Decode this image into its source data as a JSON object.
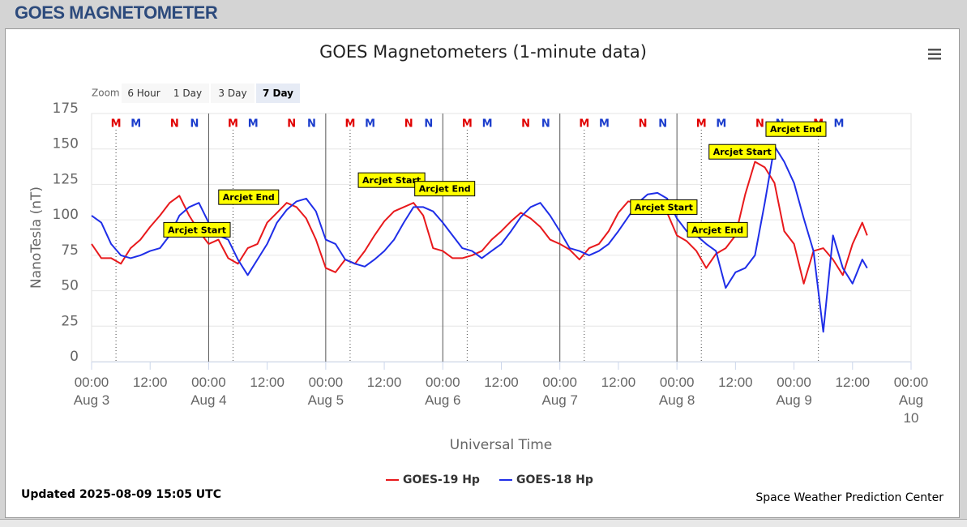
{
  "header": {
    "title": "GOES MAGNETOMETER"
  },
  "zoom": {
    "label": "Zoom",
    "buttons": [
      "6 Hour",
      "1 Day",
      "3 Day",
      "7 Day"
    ],
    "selected": 3
  },
  "chart_data": {
    "type": "line",
    "title": "GOES Magnetometers (1-minute data)",
    "xlabel": "Universal Time",
    "ylabel": "NanoTesla (nT)",
    "x": [
      0,
      2,
      4,
      6,
      8,
      10,
      12,
      14,
      16,
      18,
      20,
      22,
      24,
      26,
      28,
      30,
      32,
      34,
      36,
      38,
      40,
      42,
      44,
      46,
      48,
      50,
      52,
      54,
      56,
      58,
      60,
      62,
      64,
      66,
      68,
      70,
      72,
      74,
      76,
      78,
      80,
      82,
      84,
      86,
      88,
      90,
      92,
      94,
      96,
      98,
      100,
      102,
      104,
      106,
      108,
      110,
      112,
      114,
      116,
      118,
      120,
      122,
      124,
      126,
      128,
      130,
      132,
      134,
      136,
      138,
      140,
      142,
      144,
      146,
      148,
      150,
      152,
      154,
      156,
      158,
      159
    ],
    "series": [
      {
        "name": "GOES-19 Hp",
        "color": "#e8191c",
        "values": [
          83,
          73,
          73,
          69,
          80,
          86,
          95,
          103,
          112,
          117,
          103,
          92,
          83,
          86,
          73,
          69,
          80,
          83,
          98,
          105,
          112,
          109,
          101,
          86,
          66,
          63,
          72,
          69,
          78,
          89,
          99,
          106,
          109,
          112,
          103,
          80,
          78,
          73,
          73,
          75,
          78,
          86,
          92,
          99,
          105,
          101,
          95,
          86,
          83,
          79,
          72,
          80,
          83,
          92,
          105,
          113,
          112,
          109,
          105,
          105,
          89,
          85,
          78,
          66,
          76,
          80,
          89,
          118,
          141,
          137,
          126,
          92,
          83,
          55,
          78,
          80,
          72,
          61,
          83,
          98,
          89
        ]
      },
      {
        "name": "GOES-18 Hp",
        "color": "#1f2ee8",
        "values": [
          103,
          98,
          83,
          75,
          73,
          75,
          78,
          80,
          89,
          103,
          109,
          112,
          98,
          89,
          86,
          72,
          61,
          72,
          83,
          98,
          107,
          113,
          115,
          106,
          86,
          83,
          72,
          69,
          67,
          72,
          78,
          86,
          98,
          109,
          109,
          106,
          98,
          89,
          80,
          78,
          73,
          78,
          83,
          92,
          102,
          109,
          112,
          103,
          92,
          80,
          78,
          75,
          78,
          83,
          92,
          102,
          112,
          118,
          119,
          115,
          101,
          92,
          89,
          83,
          78,
          52,
          63,
          66,
          75,
          112,
          152,
          141,
          126,
          101,
          78,
          21,
          89,
          66,
          55,
          72,
          66
        ]
      }
    ],
    "xlim": [
      0,
      168
    ],
    "ylim": [
      0,
      175
    ],
    "yticks": [
      0,
      25,
      50,
      75,
      100,
      125,
      150,
      175
    ],
    "grid": true,
    "xticks": [
      {
        "value": 0,
        "label": "00:00 Aug 3"
      },
      {
        "value": 12,
        "label": "12:00"
      },
      {
        "value": 24,
        "label": "00:00 Aug 4"
      },
      {
        "value": 36,
        "label": "12:00"
      },
      {
        "value": 48,
        "label": "00:00 Aug 5"
      },
      {
        "value": 60,
        "label": "12:00"
      },
      {
        "value": 72,
        "label": "00:00 Aug 6"
      },
      {
        "value": 84,
        "label": "12:00"
      },
      {
        "value": 96,
        "label": "00:00 Aug 7"
      },
      {
        "value": 108,
        "label": "12:00"
      },
      {
        "value": 120,
        "label": "00:00 Aug 8"
      },
      {
        "value": 132,
        "label": "12:00"
      },
      {
        "value": 144,
        "label": "00:00 Aug 9"
      },
      {
        "value": 156,
        "label": "12:00"
      },
      {
        "value": 168,
        "label": "00:00 Aug 10"
      }
    ],
    "day_lines": [
      24,
      48,
      72,
      96,
      120
    ],
    "markers": [
      {
        "label": "M",
        "color": "#e00000",
        "x": 5
      },
      {
        "label": "M",
        "color": "#1a3ccc",
        "x": 9.1
      },
      {
        "label": "N",
        "color": "#e00000",
        "x": 17
      },
      {
        "label": "N",
        "color": "#1a3ccc",
        "x": 21.1
      },
      {
        "label": "M",
        "color": "#e00000",
        "x": 29
      },
      {
        "label": "M",
        "color": "#1a3ccc",
        "x": 33.1
      },
      {
        "label": "N",
        "color": "#e00000",
        "x": 41
      },
      {
        "label": "N",
        "color": "#1a3ccc",
        "x": 45.1
      },
      {
        "label": "M",
        "color": "#e00000",
        "x": 53
      },
      {
        "label": "M",
        "color": "#1a3ccc",
        "x": 57.1
      },
      {
        "label": "N",
        "color": "#e00000",
        "x": 65
      },
      {
        "label": "N",
        "color": "#1a3ccc",
        "x": 69.1
      },
      {
        "label": "M",
        "color": "#e00000",
        "x": 77
      },
      {
        "label": "M",
        "color": "#1a3ccc",
        "x": 81.1
      },
      {
        "label": "N",
        "color": "#e00000",
        "x": 89
      },
      {
        "label": "N",
        "color": "#1a3ccc",
        "x": 93.1
      },
      {
        "label": "M",
        "color": "#e00000",
        "x": 101
      },
      {
        "label": "M",
        "color": "#1a3ccc",
        "x": 105.1
      },
      {
        "label": "N",
        "color": "#e00000",
        "x": 113
      },
      {
        "label": "N",
        "color": "#1a3ccc",
        "x": 117.1
      },
      {
        "label": "M",
        "color": "#e00000",
        "x": 125
      },
      {
        "label": "M",
        "color": "#1a3ccc",
        "x": 129.1
      },
      {
        "label": "N",
        "color": "#e00000",
        "x": 137
      },
      {
        "label": "N",
        "color": "#1a3ccc",
        "x": 141.1
      },
      {
        "label": "M",
        "color": "#e00000",
        "x": 149
      },
      {
        "label": "M",
        "color": "#1a3ccc",
        "x": 153.2
      }
    ],
    "annotations": [
      {
        "text": "Arcjet Start",
        "x": 21.6,
        "y": 93
      },
      {
        "text": "Arcjet End",
        "x": 32.2,
        "y": 116
      },
      {
        "text": "Arcjet Start",
        "x": 61.5,
        "y": 128
      },
      {
        "text": "Arcjet End",
        "x": 72.4,
        "y": 122
      },
      {
        "text": "Arcjet Start",
        "x": 117.3,
        "y": 109
      },
      {
        "text": "Arcjet End",
        "x": 128.3,
        "y": 93
      },
      {
        "text": "Arcjet Start",
        "x": 133.4,
        "y": 148
      },
      {
        "text": "Arcjet End",
        "x": 144.4,
        "y": 164
      }
    ]
  },
  "footer": {
    "updated": "Updated 2025-08-09 15:05 UTC",
    "credit": "Space Weather Prediction Center"
  }
}
